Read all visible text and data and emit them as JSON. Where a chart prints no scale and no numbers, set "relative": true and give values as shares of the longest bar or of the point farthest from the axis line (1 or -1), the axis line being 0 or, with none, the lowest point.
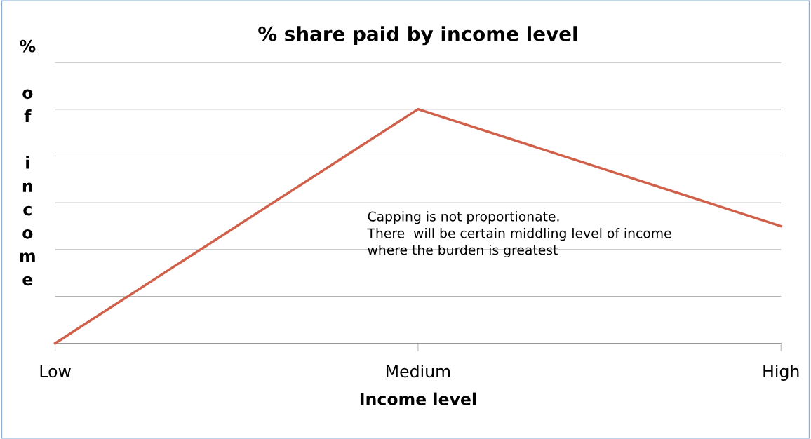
{
  "chart_data": {
    "type": "line",
    "title": "% share paid by income level",
    "xlabel": "Income level",
    "ylabel": "% of income",
    "categories": [
      "Low",
      "Medium",
      "High"
    ],
    "series": [
      {
        "color": "#d0604a",
        "values": [
          0,
          1,
          0.5
        ]
      }
    ],
    "relative": true,
    "grid": "y",
    "legend": false,
    "marker": "none",
    "line_style": "solid",
    "annotations": [
      "Capping is not proportionate.\nThere  will be certain middling level of income\nwhere the burden is greatest"
    ]
  }
}
